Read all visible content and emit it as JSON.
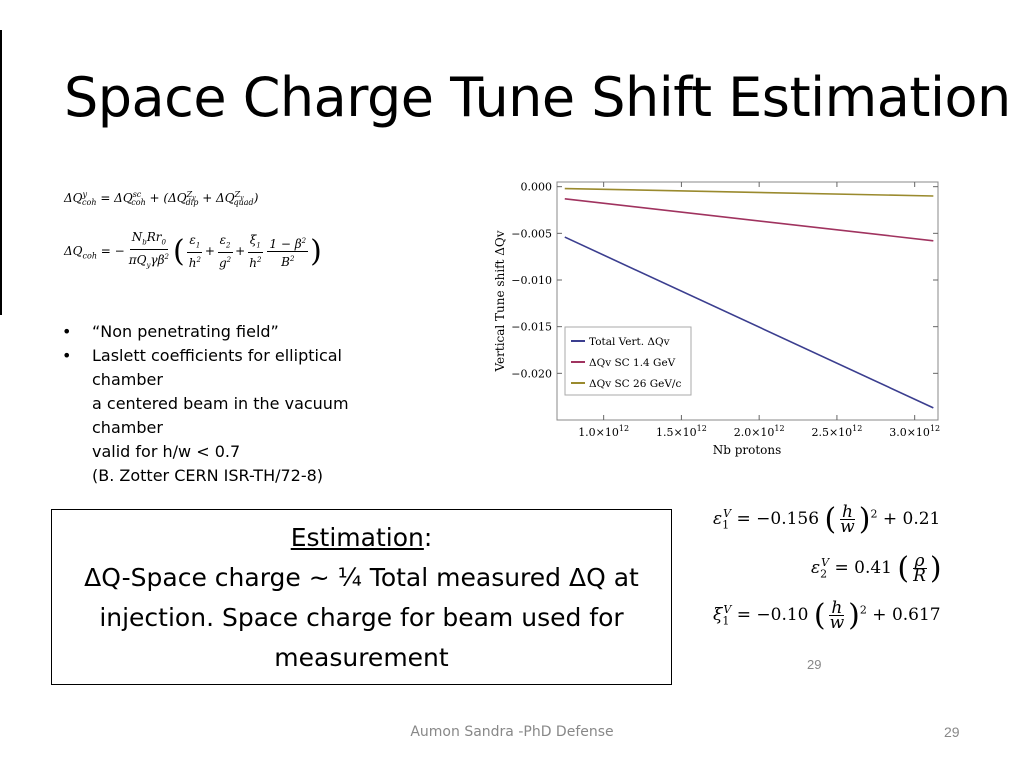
{
  "slide": {
    "title": "Space Charge Tune Shift Estimation",
    "footer": "Aumon Sandra -PhD Defense",
    "page_number": "29",
    "inner_page_number": "29"
  },
  "equations": {
    "eq1_text": "ΔQ_coh^y = ΔQ_coh^sc + (ΔQ_dip^Zy + ΔQ_quad^Zy)",
    "eq2_text": "ΔQ_coh = −(N_b R r_0)/(π Q_y γ β²) (ε1/h² + ε2/g² + ξ1/h² (1−β²)/B²)",
    "eps1_text": "ε1V = −0.156 (h/w)² + 0.21",
    "eps2_text": "ε2V = 0.41 (ρ/R)",
    "xi1_text": "ξ1V = −0.10 (h/w)² + 0.617"
  },
  "bullets": {
    "item1": "“Non penetrating field”",
    "item2": "Laslett coefficients for elliptical chamber",
    "sub1": "a centered beam in the vacuum chamber",
    "sub2": "valid for h/w < 0.7",
    "sub3": "(B. Zotter CERN ISR-TH/72-8)"
  },
  "estimation": {
    "heading": "Estimation",
    "colon": ":",
    "body": "ΔQ-Space charge ~ ¼ Total measured ΔQ at injection. Space charge for beam used for measurement"
  },
  "chart_data": {
    "type": "line",
    "xlabel": "Nb protons",
    "ylabel": "Vertical Tune shift ΔQv",
    "xlim": [
      700000000000.0,
      3150000000000.0
    ],
    "ylim": [
      -0.025,
      0.0005
    ],
    "x_ticks": [
      {
        "value": 1000000000000.0,
        "mant": "1.0",
        "exp": "12"
      },
      {
        "value": 1500000000000.0,
        "mant": "1.5",
        "exp": "12"
      },
      {
        "value": 2000000000000.0,
        "mant": "2.0",
        "exp": "12"
      },
      {
        "value": 2500000000000.0,
        "mant": "2.5",
        "exp": "12"
      },
      {
        "value": 3000000000000.0,
        "mant": "3.0",
        "exp": "12"
      }
    ],
    "y_ticks": [
      {
        "value": 0.0,
        "label": "0.000"
      },
      {
        "value": -0.005,
        "label": "−0.005"
      },
      {
        "value": -0.01,
        "label": "−0.010"
      },
      {
        "value": -0.015,
        "label": "−0.015"
      },
      {
        "value": -0.02,
        "label": "−0.020"
      }
    ],
    "legend_position": "bottom-left",
    "series": [
      {
        "name": "Total Vert. ΔQv",
        "color": "#3b3e8f",
        "x": [
          750000000000.0,
          3120000000000.0
        ],
        "y": [
          -0.0054,
          -0.0237
        ]
      },
      {
        "name": "ΔQv SC 1.4 GeV",
        "color": "#a0335f",
        "x": [
          750000000000.0,
          3120000000000.0
        ],
        "y": [
          -0.0013,
          -0.0058
        ]
      },
      {
        "name": "ΔQv SC 26 GeV/c",
        "color": "#9a8a2e",
        "x": [
          750000000000.0,
          3120000000000.0
        ],
        "y": [
          -0.0002,
          -0.001
        ]
      }
    ]
  }
}
